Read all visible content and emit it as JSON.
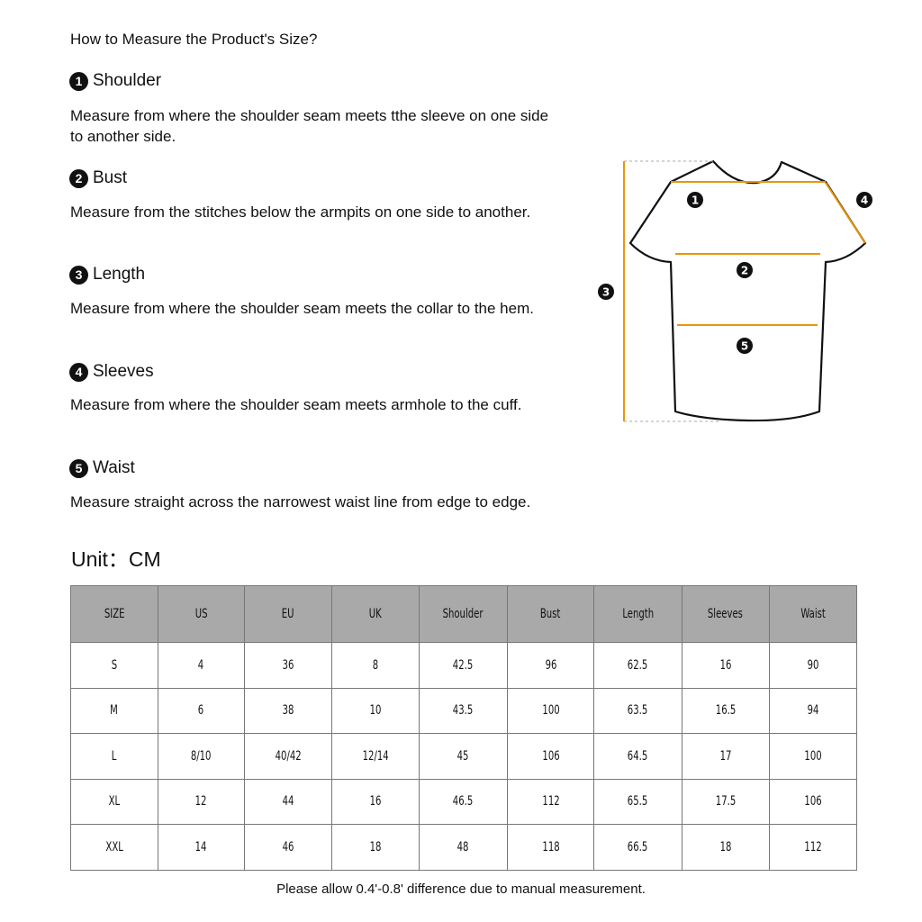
{
  "title": "How to Measure the Product's Size?",
  "sections": [
    {
      "num": "1",
      "label": "Shoulder",
      "desc": "Measure from where the shoulder seam meets tthe sleeve on one side to another side."
    },
    {
      "num": "2",
      "label": "Bust",
      "desc": "Measure from the stitches below the armpits on one side to another."
    },
    {
      "num": "3",
      "label": "Length",
      "desc": "Measure from where the shoulder seam meets the collar to the hem."
    },
    {
      "num": "4",
      "label": "Sleeves",
      "desc": "Measure from where the shoulder seam meets armhole to the cuff."
    },
    {
      "num": "5",
      "label": "Waist",
      "desc": "Measure straight across the narrowest waist line from edge to edge."
    }
  ],
  "diagram": {
    "markers": [
      "1",
      "2",
      "3",
      "4",
      "5"
    ],
    "line_color": "#e8960c"
  },
  "unit": "Unit：CM",
  "table": {
    "headers": [
      "SIZE",
      "US",
      "EU",
      "UK",
      "Shoulder",
      "Bust",
      "Length",
      "Sleeves",
      "Waist"
    ],
    "rows": [
      [
        "S",
        "4",
        "36",
        "8",
        "42.5",
        "96",
        "62.5",
        "16",
        "90"
      ],
      [
        "M",
        "6",
        "38",
        "10",
        "43.5",
        "100",
        "63.5",
        "16.5",
        "94"
      ],
      [
        "L",
        "8/10",
        "40/42",
        "12/14",
        "45",
        "106",
        "64.5",
        "17",
        "100"
      ],
      [
        "XL",
        "12",
        "44",
        "16",
        "46.5",
        "112",
        "65.5",
        "17.5",
        "106"
      ],
      [
        "XXL",
        "14",
        "46",
        "18",
        "48",
        "118",
        "66.5",
        "18",
        "112"
      ]
    ]
  },
  "note": "Please allow 0.4'-0.8' difference due to manual measurement."
}
